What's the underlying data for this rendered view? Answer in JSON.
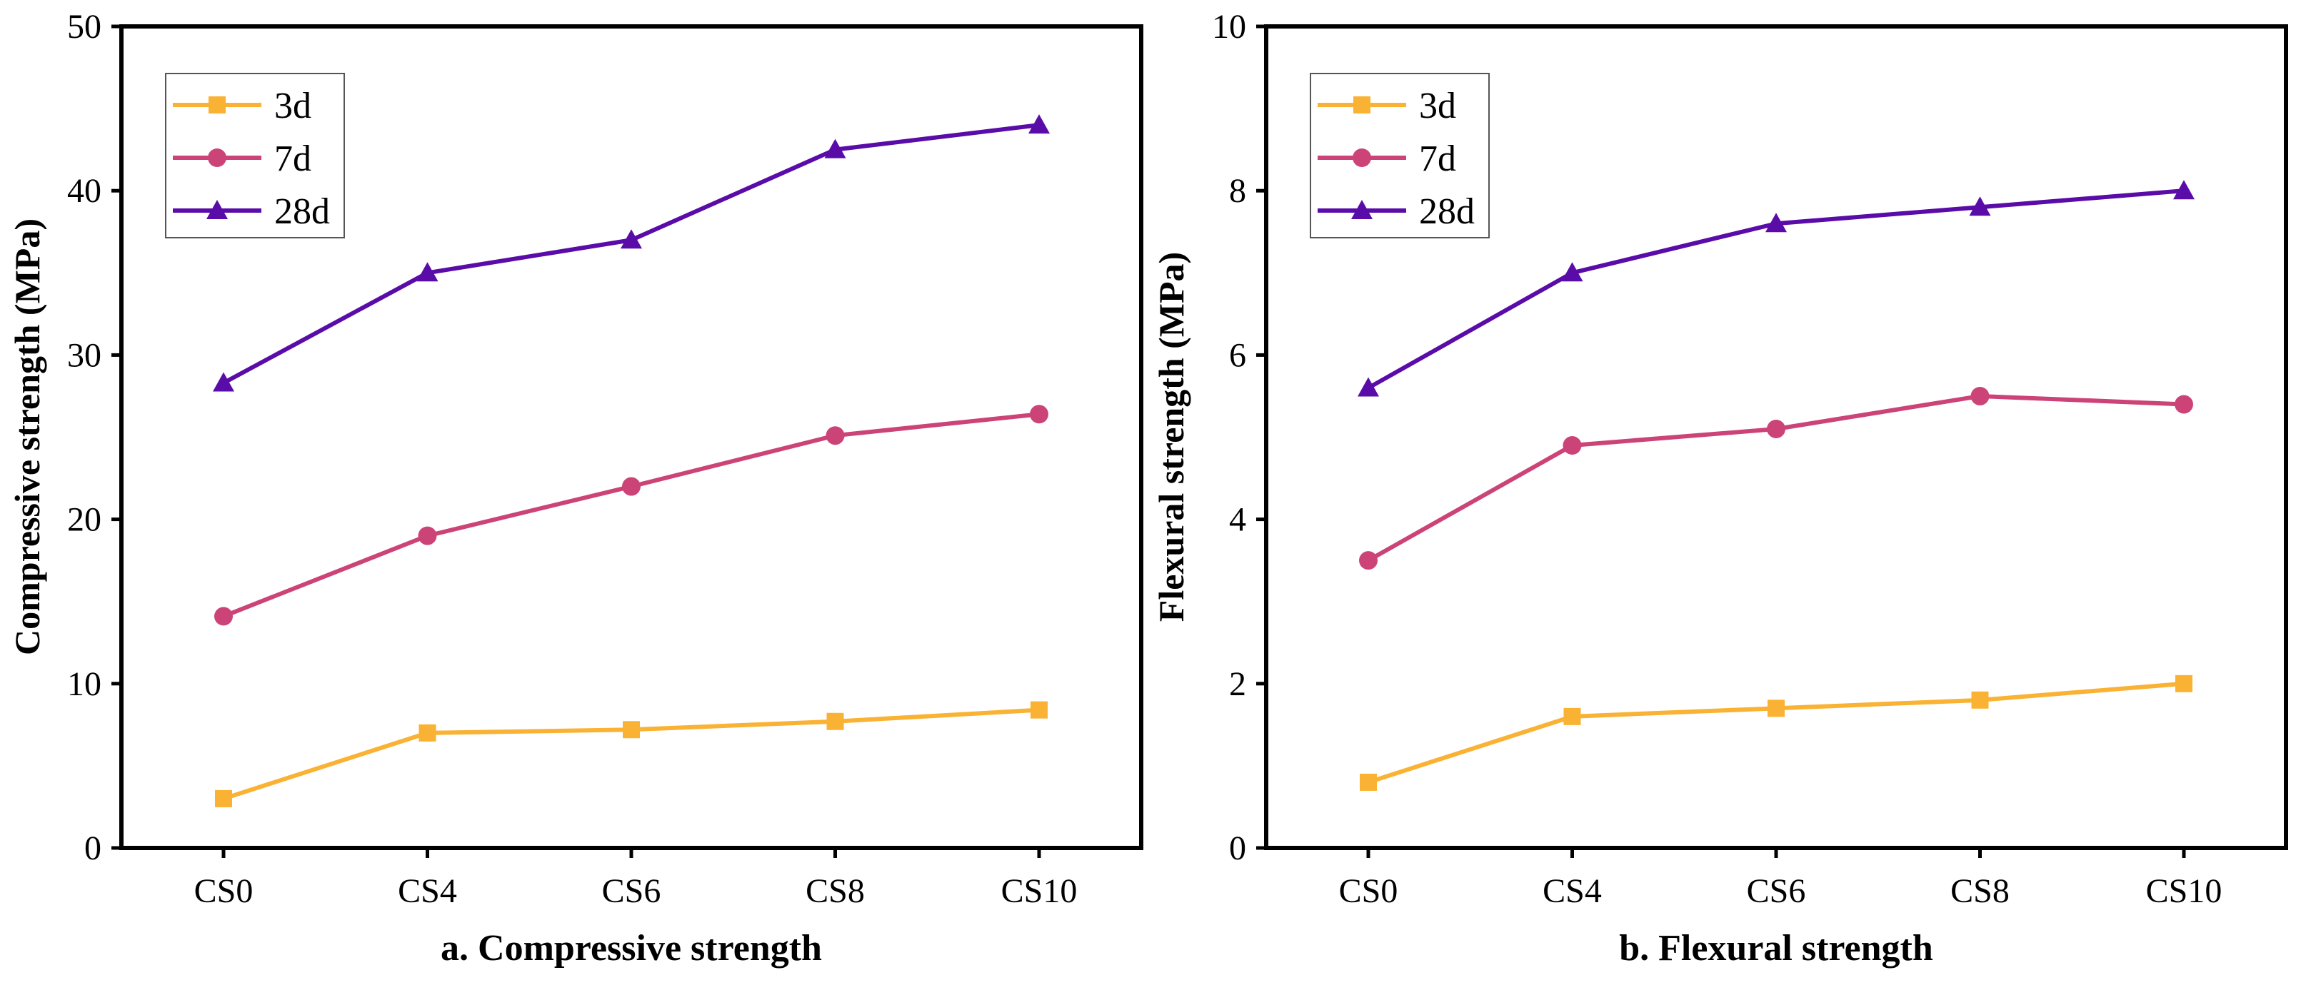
{
  "chart_data": [
    {
      "type": "line",
      "title": "",
      "caption": "a. Compressive strength",
      "xlabel": "",
      "ylabel": "Compressive strength (MPa)",
      "categories": [
        "CS0",
        "CS4",
        "CS6",
        "CS8",
        "CS10"
      ],
      "ylim": [
        0,
        50
      ],
      "yticks": [
        "0",
        "10",
        "20",
        "30",
        "40",
        "50"
      ],
      "grid": false,
      "legend_position": "top-left",
      "series": [
        {
          "name": "3d",
          "values": [
            3.0,
            7.0,
            7.2,
            7.7,
            8.4
          ],
          "color": "#f9b233",
          "marker": "square"
        },
        {
          "name": "7d",
          "values": [
            14.1,
            19.0,
            22.0,
            25.1,
            26.4
          ],
          "color": "#cc4477",
          "marker": "circle"
        },
        {
          "name": "28d",
          "values": [
            28.3,
            35.0,
            37.0,
            42.5,
            44.0
          ],
          "color": "#5a0ca8",
          "marker": "triangle"
        }
      ]
    },
    {
      "type": "line",
      "title": "",
      "caption": "b. Flexural strength",
      "xlabel": "",
      "ylabel": "Flexural strength (MPa)",
      "categories": [
        "CS0",
        "CS4",
        "CS6",
        "CS8",
        "CS10"
      ],
      "ylim": [
        0,
        10
      ],
      "yticks": [
        "0",
        "2",
        "4",
        "6",
        "8",
        "10"
      ],
      "grid": false,
      "legend_position": "top-left",
      "series": [
        {
          "name": "3d",
          "values": [
            0.8,
            1.6,
            1.7,
            1.8,
            2.0
          ],
          "color": "#f9b233",
          "marker": "square"
        },
        {
          "name": "7d",
          "values": [
            3.5,
            4.9,
            5.1,
            5.5,
            5.4
          ],
          "color": "#cc4477",
          "marker": "circle"
        },
        {
          "name": "28d",
          "values": [
            5.6,
            7.0,
            7.6,
            7.8,
            8.0
          ],
          "color": "#5a0ca8",
          "marker": "triangle"
        }
      ]
    }
  ]
}
